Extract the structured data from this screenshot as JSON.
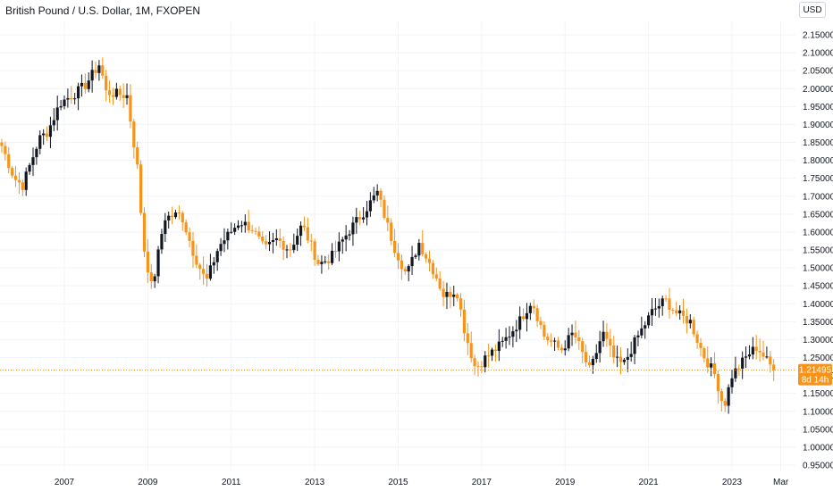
{
  "title": "British Pound / U.S. Dollar, 1M, FXOPEN",
  "currency": "USD",
  "colors": {
    "up": "#131722",
    "down": "#f7931a",
    "grid": "#f0f3fa",
    "price_line": "#f7931a",
    "badge": "#f7931a"
  },
  "price_badge": {
    "price": "1.21495",
    "countdown": "8d 14h"
  },
  "chart_data": {
    "type": "candlestick",
    "title": "British Pound / U.S. Dollar, 1M, FXOPEN",
    "interval": "1M",
    "y_ticks": [
      "2.15000",
      "2.10000",
      "2.05000",
      "2.00000",
      "1.95000",
      "1.90000",
      "1.85000",
      "1.80000",
      "1.75000",
      "1.70000",
      "1.65000",
      "1.60000",
      "1.55000",
      "1.50000",
      "1.45000",
      "1.40000",
      "1.35000",
      "1.30000",
      "1.25000",
      "1.20000",
      "1.15000",
      "1.10000",
      "1.05000",
      "1.00000",
      "0.95000"
    ],
    "ylim": [
      0.95,
      2.15
    ],
    "x_ticks": [
      {
        "label": "2007",
        "t": 2007.0
      },
      {
        "label": "2009",
        "t": 2009.0
      },
      {
        "label": "2011",
        "t": 2011.0
      },
      {
        "label": "2013",
        "t": 2013.0
      },
      {
        "label": "2015",
        "t": 2015.0
      },
      {
        "label": "2017",
        "t": 2017.0
      },
      {
        "label": "2019",
        "t": 2019.0
      },
      {
        "label": "2021",
        "t": 2021.0
      },
      {
        "label": "2023",
        "t": 2023.0
      },
      {
        "label": "Mar",
        "t": 2024.17
      }
    ],
    "last_price": 1.21495,
    "anchors": [
      [
        2005.5,
        1.84
      ],
      [
        2005.8,
        1.75
      ],
      [
        2006.0,
        1.73
      ],
      [
        2006.4,
        1.86
      ],
      [
        2006.6,
        1.88
      ],
      [
        2006.9,
        1.96
      ],
      [
        2007.3,
        1.99
      ],
      [
        2007.5,
        2.01
      ],
      [
        2007.85,
        2.07
      ],
      [
        2008.0,
        1.99
      ],
      [
        2008.5,
        1.98
      ],
      [
        2008.75,
        1.78
      ],
      [
        2008.9,
        1.56
      ],
      [
        2009.1,
        1.44
      ],
      [
        2009.4,
        1.64
      ],
      [
        2009.8,
        1.65
      ],
      [
        2010.1,
        1.54
      ],
      [
        2010.4,
        1.46
      ],
      [
        2010.7,
        1.56
      ],
      [
        2011.2,
        1.63
      ],
      [
        2011.5,
        1.61
      ],
      [
        2011.8,
        1.55
      ],
      [
        2012.1,
        1.58
      ],
      [
        2012.4,
        1.55
      ],
      [
        2012.7,
        1.62
      ],
      [
        2013.1,
        1.51
      ],
      [
        2013.4,
        1.53
      ],
      [
        2013.8,
        1.6
      ],
      [
        2014.2,
        1.66
      ],
      [
        2014.5,
        1.71
      ],
      [
        2014.9,
        1.56
      ],
      [
        2015.2,
        1.48
      ],
      [
        2015.5,
        1.57
      ],
      [
        2015.9,
        1.48
      ],
      [
        2016.1,
        1.42
      ],
      [
        2016.4,
        1.44
      ],
      [
        2016.6,
        1.32
      ],
      [
        2016.85,
        1.22
      ],
      [
        2017.1,
        1.25
      ],
      [
        2017.5,
        1.29
      ],
      [
        2017.9,
        1.35
      ],
      [
        2018.2,
        1.41
      ],
      [
        2018.5,
        1.31
      ],
      [
        2018.9,
        1.27
      ],
      [
        2019.2,
        1.32
      ],
      [
        2019.6,
        1.21
      ],
      [
        2019.9,
        1.32
      ],
      [
        2020.2,
        1.24
      ],
      [
        2020.4,
        1.23
      ],
      [
        2020.7,
        1.3
      ],
      [
        2021.1,
        1.38
      ],
      [
        2021.4,
        1.41
      ],
      [
        2021.7,
        1.37
      ],
      [
        2022.0,
        1.35
      ],
      [
        2022.3,
        1.26
      ],
      [
        2022.6,
        1.2
      ],
      [
        2022.8,
        1.11
      ],
      [
        2023.0,
        1.2
      ],
      [
        2023.4,
        1.26
      ],
      [
        2023.6,
        1.28
      ],
      [
        2023.9,
        1.23
      ],
      [
        2024.0,
        1.22
      ]
    ]
  }
}
